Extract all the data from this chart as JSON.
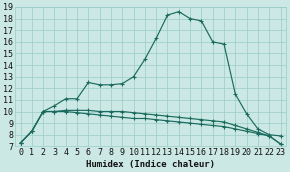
{
  "xlabel": "Humidex (Indice chaleur)",
  "bg_color": "#cce8e4",
  "grid_color": "#99ccc7",
  "line_color": "#1a6b5e",
  "xlim": [
    -0.5,
    23.5
  ],
  "ylim": [
    7,
    19
  ],
  "xticks": [
    0,
    1,
    2,
    3,
    4,
    5,
    6,
    7,
    8,
    9,
    10,
    11,
    12,
    13,
    14,
    15,
    16,
    17,
    18,
    19,
    20,
    21,
    22,
    23
  ],
  "yticks": [
    7,
    8,
    9,
    10,
    11,
    12,
    13,
    14,
    15,
    16,
    17,
    18,
    19
  ],
  "series1_x": [
    0,
    1,
    2,
    3,
    4,
    5,
    6,
    7,
    8,
    9,
    10,
    11,
    12,
    13,
    14,
    15,
    16,
    17,
    18,
    19,
    20,
    21,
    22,
    23
  ],
  "series1_y": [
    7.3,
    8.3,
    10.0,
    10.5,
    11.1,
    11.1,
    12.5,
    12.3,
    12.3,
    12.4,
    13.0,
    14.5,
    16.3,
    18.3,
    18.6,
    18.0,
    17.8,
    16.0,
    15.8,
    11.5,
    9.8,
    8.5,
    8.0,
    7.9
  ],
  "series2_x": [
    0,
    1,
    2,
    3,
    4,
    5,
    6,
    7,
    8,
    9,
    10,
    11,
    12,
    13,
    14,
    15,
    16,
    17,
    18,
    19,
    20,
    21,
    22,
    23
  ],
  "series2_y": [
    7.3,
    8.3,
    10.0,
    10.0,
    10.0,
    9.9,
    9.8,
    9.7,
    9.6,
    9.5,
    9.4,
    9.4,
    9.3,
    9.2,
    9.1,
    9.0,
    8.9,
    8.8,
    8.7,
    8.5,
    8.3,
    8.1,
    7.9,
    7.2
  ],
  "series3_x": [
    0,
    1,
    2,
    3,
    4,
    5,
    6,
    7,
    8,
    9,
    10,
    11,
    12,
    13,
    14,
    15,
    16,
    17,
    18,
    19,
    20,
    21,
    22,
    23
  ],
  "series3_y": [
    7.3,
    8.3,
    10.0,
    10.0,
    10.1,
    10.1,
    10.1,
    10.0,
    10.0,
    10.0,
    9.9,
    9.8,
    9.7,
    9.6,
    9.5,
    9.4,
    9.3,
    9.2,
    9.1,
    8.8,
    8.5,
    8.2,
    7.9,
    7.2
  ]
}
